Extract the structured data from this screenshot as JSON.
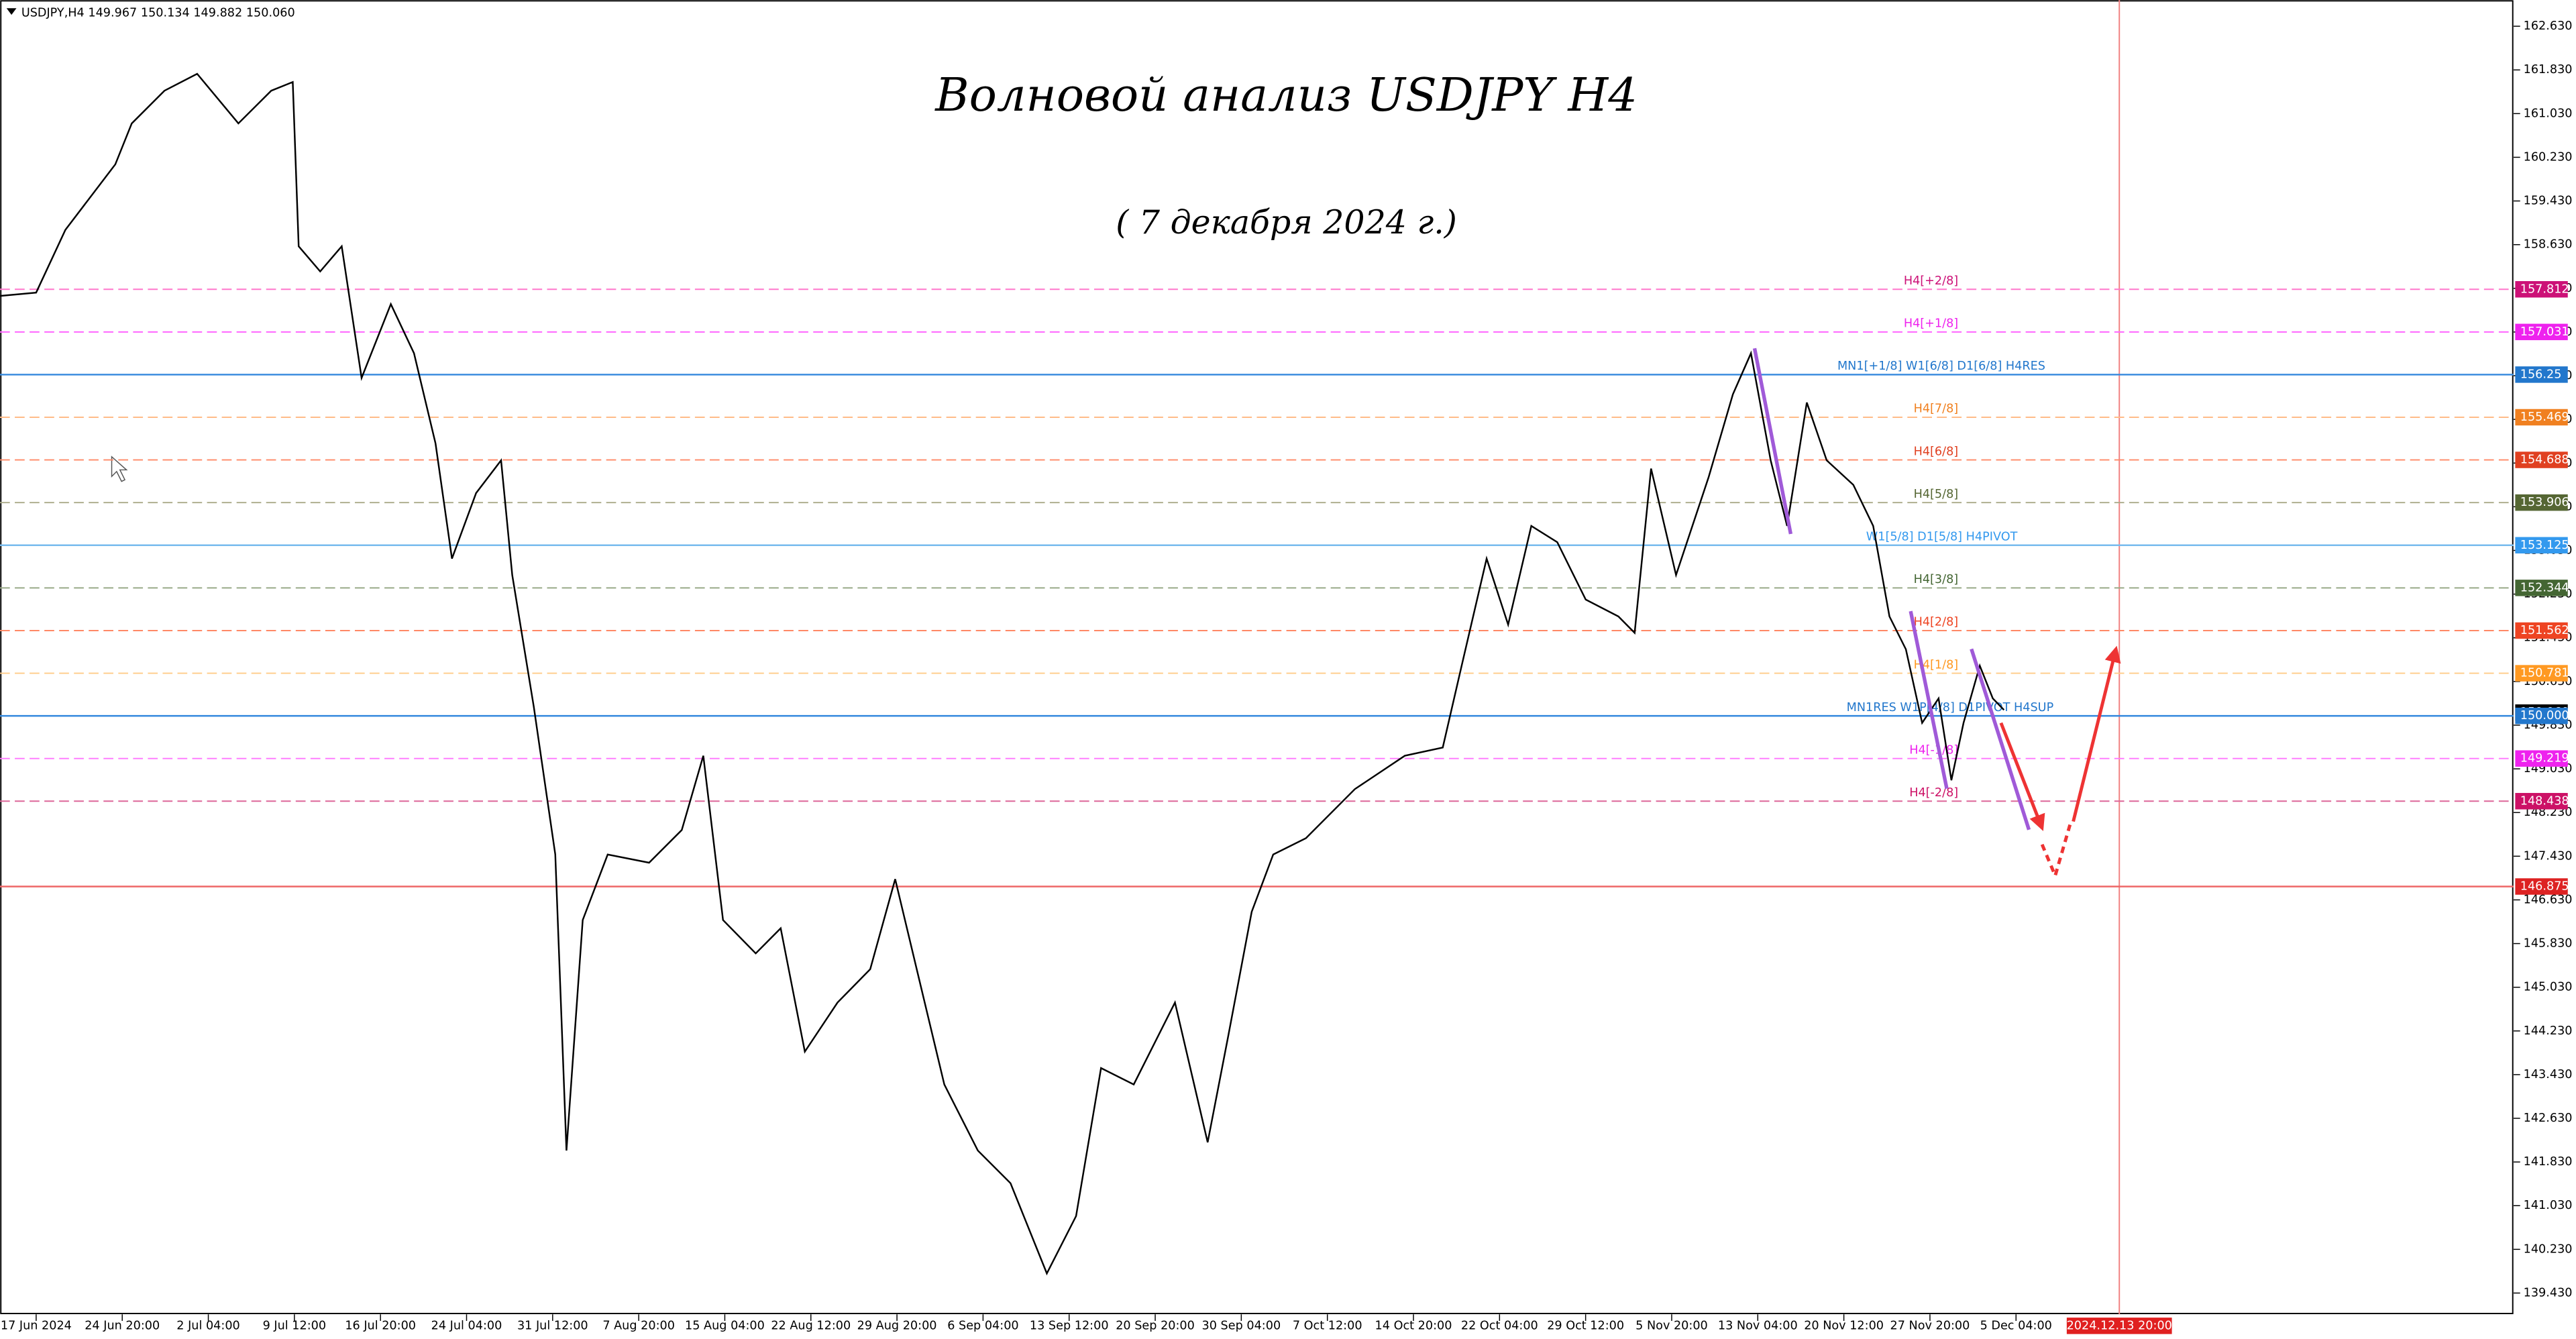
{
  "chart_data": {
    "type": "line",
    "header": "USDJPY,H4  149.967 150.134 149.882 150.060",
    "title": "Волновой анализ USDJPY H4",
    "subtitle": "( 7 декабря 2024 г.)",
    "color": "#000000",
    "x": [
      -0.42,
      0,
      0.34,
      0.92,
      1.11,
      1.49,
      1.87,
      2.35,
      2.73,
      2.98,
      3.05,
      3.3,
      3.55,
      3.78,
      4.12,
      4.39,
      4.64,
      4.83,
      5.11,
      5.4,
      5.53,
      5.78,
      6.03,
      6.16,
      6.35,
      6.64,
      7.12,
      7.5,
      7.75,
      7.98,
      8.36,
      8.65,
      8.93,
      9.31,
      9.69,
      9.98,
      10.23,
      10.55,
      10.94,
      11.32,
      11.74,
      12.08,
      12.37,
      12.75,
      13.23,
      13.61,
      13.85,
      14.12,
      14.37,
      14.75,
      15.32,
      15.9,
      16.34,
      16.56,
      16.85,
      17.1,
      17.37,
      17.67,
      18,
      18.38,
      18.57,
      18.76,
      19.05,
      19.43,
      19.71,
      19.92,
      20.15,
      20.34,
      20.57,
      20.8,
      21.11,
      21.34,
      21.53,
      21.72,
      21.91,
      22.1,
      22.25,
      22.39,
      22.58,
      22.73,
      22.86
    ],
    "values": [
      157.69,
      157.75,
      158.9,
      160.1,
      160.85,
      161.45,
      161.76,
      160.85,
      161.45,
      161.61,
      158.6,
      158.14,
      158.6,
      156.19,
      157.54,
      156.64,
      154.99,
      152.88,
      154.08,
      154.68,
      152.58,
      150.17,
      147.46,
      142.04,
      146.26,
      147.46,
      147.31,
      147.91,
      149.27,
      146.26,
      145.65,
      146.11,
      143.85,
      144.75,
      145.36,
      147.01,
      145.36,
      143.25,
      142.04,
      141.44,
      139.79,
      140.84,
      143.55,
      143.25,
      144.75,
      142.19,
      144.15,
      146.41,
      147.46,
      147.76,
      148.66,
      149.27,
      149.42,
      150.92,
      152.88,
      151.67,
      153.48,
      153.18,
      152.13,
      151.82,
      151.52,
      154.53,
      152.58,
      154.38,
      155.89,
      156.64,
      154.68,
      153.48,
      155.74,
      154.68,
      154.23,
      153.48,
      151.82,
      151.22,
      149.87,
      150.32,
      148.82,
      149.87,
      150.92,
      150.32,
      150.11
    ],
    "xlim": [
      -0.42,
      28.78
    ],
    "ylim": [
      139.04,
      163.11
    ],
    "xticks": [
      {
        "value": 0,
        "label": "17 Jun 2024"
      },
      {
        "value": 1,
        "label": "24 Jun 20:00"
      },
      {
        "value": 2,
        "label": "2 Jul 04:00"
      },
      {
        "value": 3,
        "label": "9 Jul 12:00"
      },
      {
        "value": 4,
        "label": "16 Jul 20:00"
      },
      {
        "value": 5,
        "label": "24 Jul 04:00"
      },
      {
        "value": 6,
        "label": "31 Jul 12:00"
      },
      {
        "value": 7,
        "label": "7 Aug 20:00"
      },
      {
        "value": 8,
        "label": "15 Aug 04:00"
      },
      {
        "value": 9,
        "label": "22 Aug 12:00"
      },
      {
        "value": 10,
        "label": "29 Aug 20:00"
      },
      {
        "value": 11,
        "label": "6 Sep 04:00"
      },
      {
        "value": 12,
        "label": "13 Sep 12:00"
      },
      {
        "value": 13,
        "label": "20 Sep 20:00"
      },
      {
        "value": 14,
        "label": "30 Sep 04:00"
      },
      {
        "value": 15,
        "label": "7 Oct 12:00"
      },
      {
        "value": 16,
        "label": "14 Oct 20:00"
      },
      {
        "value": 17,
        "label": "22 Oct 04:00"
      },
      {
        "value": 18,
        "label": "29 Oct 12:00"
      },
      {
        "value": 19,
        "label": "5 Nov 20:00"
      },
      {
        "value": 20,
        "label": "13 Nov 04:00"
      },
      {
        "value": 21,
        "label": "20 Nov 12:00"
      },
      {
        "value": 22,
        "label": "27 Nov 20:00"
      },
      {
        "value": 23,
        "label": "5 Dec 04:00"
      }
    ],
    "cursor_x": {
      "value": 24.2,
      "label": "2024.12.13 20:00"
    },
    "yticks": [
      {
        "value": 162.63,
        "label": "162.630"
      },
      {
        "value": 161.83,
        "label": "161.830"
      },
      {
        "value": 161.03,
        "label": "161.030"
      },
      {
        "value": 160.23,
        "label": "160.230"
      },
      {
        "value": 159.43,
        "label": "159.430"
      },
      {
        "value": 158.63,
        "label": "158.630"
      },
      {
        "value": 157.83,
        "label": "157.830"
      },
      {
        "value": 157.03,
        "label": "157.030"
      },
      {
        "value": 156.23,
        "label": "156.230"
      },
      {
        "value": 155.43,
        "label": "155.430"
      },
      {
        "value": 154.63,
        "label": "154.630"
      },
      {
        "value": 153.83,
        "label": "153.830"
      },
      {
        "value": 153.03,
        "label": "153.030"
      },
      {
        "value": 152.23,
        "label": "152.230"
      },
      {
        "value": 151.43,
        "label": "151.430"
      },
      {
        "value": 150.63,
        "label": "150.630"
      },
      {
        "value": 149.83,
        "label": "149.830"
      },
      {
        "value": 149.03,
        "label": "149.030"
      },
      {
        "value": 148.23,
        "label": "148.230"
      },
      {
        "value": 147.43,
        "label": "147.430"
      },
      {
        "value": 146.63,
        "label": "146.630"
      },
      {
        "value": 145.83,
        "label": "145.830"
      },
      {
        "value": 145.03,
        "label": "145.030"
      },
      {
        "value": 144.23,
        "label": "144.230"
      },
      {
        "value": 143.43,
        "label": "143.430"
      },
      {
        "value": 142.63,
        "label": "142.630"
      },
      {
        "value": 141.83,
        "label": "141.830"
      },
      {
        "value": 141.03,
        "label": "141.030"
      },
      {
        "value": 140.23,
        "label": "140.230"
      },
      {
        "value": 139.43,
        "label": "139.430"
      }
    ],
    "bid": {
      "value": 150.06,
      "label": "150.060"
    },
    "levels": [
      {
        "price": 157.812,
        "label": "H4[+2/8]",
        "color": "#cc1177",
        "line": "#ff77cc",
        "dashed": true
      },
      {
        "price": 157.031,
        "label": "H4[+1/8]",
        "color": "#ee22ee",
        "line": "#ff66ff",
        "dashed": true
      },
      {
        "price": 156.25,
        "label": "MN1[+1/8] W1[6/8] D1[6/8] H4RES",
        "color": "#2277cc",
        "line": "#3388dd",
        "dashed": false
      },
      {
        "price": 155.469,
        "label": "H4[7/8]",
        "color": "#f08020",
        "line": "#ffbb88",
        "dashed": true
      },
      {
        "price": 154.688,
        "label": "H4[6/8]",
        "color": "#e04020",
        "line": "#ff8866",
        "dashed": true
      },
      {
        "price": 153.906,
        "label": "H4[5/8]",
        "color": "#556633",
        "line": "#aaaa88",
        "dashed": true
      },
      {
        "price": 153.125,
        "label": "W1[5/8] D1[5/8] H4PIVOT",
        "color": "#3399ee",
        "line": "#77bbee",
        "dashed": false
      },
      {
        "price": 152.344,
        "label": "H4[3/8]",
        "color": "#446633",
        "line": "#99aa88",
        "dashed": true
      },
      {
        "price": 151.562,
        "label": "H4[2/8]",
        "color": "#ee4422",
        "line": "#ff8866",
        "dashed": true
      },
      {
        "price": 150.781,
        "label": "H4[1/8]",
        "color": "#ff9922",
        "line": "#ffcc88",
        "dashed": true
      },
      {
        "price": {
          "value": 150,
          "label": "150.000"
        },
        "label": "MN1RES W1P[4/8] D1PIVOT H4SUP",
        "color": "#2277cc",
        "line": "#3388dd",
        "dashed": false
      },
      {
        "price": 149.219,
        "label": "H4[-1/8]",
        "color": "#ee22ee",
        "line": "#ff77ff",
        "dashed": true
      },
      {
        "price": 148.438,
        "label": "H4[-2/8]",
        "color": "#cc1166",
        "line": "#dd6699",
        "dashed": true
      },
      {
        "price": 146.875,
        "color": "#dd2222",
        "line": "#ee6666",
        "dashed": false
      }
    ]
  }
}
